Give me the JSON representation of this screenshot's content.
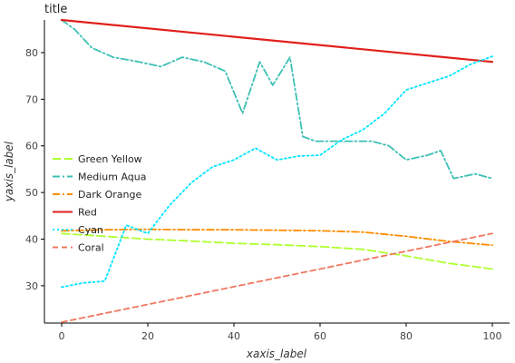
{
  "chart_data": {
    "type": "line",
    "title": "title",
    "xlabel": "xaxis_label",
    "ylabel": "yaxis_label",
    "xlim": [
      -4,
      104
    ],
    "ylim": [
      22,
      87
    ],
    "x_ticks": [
      0,
      20,
      40,
      60,
      80,
      100
    ],
    "y_ticks": [
      30,
      40,
      50,
      60,
      70,
      80
    ],
    "legend_position": "left",
    "grid": false,
    "series": [
      {
        "name": "Green Yellow",
        "color": "#adff2f",
        "dash": "long-dash",
        "x": [
          0,
          10,
          20,
          30,
          40,
          50,
          60,
          70,
          80,
          90,
          100
        ],
        "y": [
          41.2,
          40.6,
          40.0,
          39.6,
          39.1,
          38.8,
          38.4,
          37.8,
          36.4,
          34.8,
          33.6
        ]
      },
      {
        "name": "Medium Aqua",
        "color": "#3cc0b4",
        "dash": "dash-dot",
        "x": [
          0,
          3,
          7,
          12,
          18,
          23,
          28,
          33,
          38,
          42,
          46,
          49,
          53,
          56,
          59,
          62,
          67,
          72,
          76,
          80,
          85,
          88,
          91,
          96,
          100
        ],
        "y": [
          87,
          85,
          81,
          79,
          78,
          77,
          79,
          78,
          76,
          67,
          78,
          73,
          79,
          62,
          61,
          61,
          61,
          61,
          60,
          57,
          58,
          59,
          53,
          54,
          53
        ]
      },
      {
        "name": "Dark Orange",
        "color": "#ff8c00",
        "dash": "dash-dot",
        "x": [
          0,
          10,
          20,
          30,
          40,
          50,
          60,
          70,
          80,
          90,
          100
        ],
        "y": [
          41.8,
          42.0,
          42.1,
          42.0,
          42.0,
          41.9,
          41.8,
          41.5,
          40.6,
          39.5,
          38.7
        ]
      },
      {
        "name": "Red",
        "color": "#e0201b",
        "dash": "solid",
        "x": [
          0,
          100
        ],
        "y": [
          87,
          78
        ]
      },
      {
        "name": "Cyan",
        "color": "#00e5ff",
        "dash": "dot",
        "x": [
          0,
          5,
          10,
          15,
          20,
          25,
          30,
          35,
          40,
          45,
          50,
          55,
          60,
          65,
          70,
          75,
          80,
          85,
          90,
          95,
          100
        ],
        "y": [
          29.7,
          30.6,
          31.0,
          43.0,
          41.2,
          47.2,
          52.0,
          55.5,
          57.0,
          59.5,
          57.0,
          57.8,
          58.0,
          61.3,
          63.5,
          67.0,
          72.0,
          73.5,
          75.0,
          77.5,
          79.2
        ]
      },
      {
        "name": "Coral",
        "color": "#f07860",
        "dash": "dash",
        "x": [
          0,
          100
        ],
        "y": [
          22.2,
          41.2
        ]
      }
    ]
  }
}
